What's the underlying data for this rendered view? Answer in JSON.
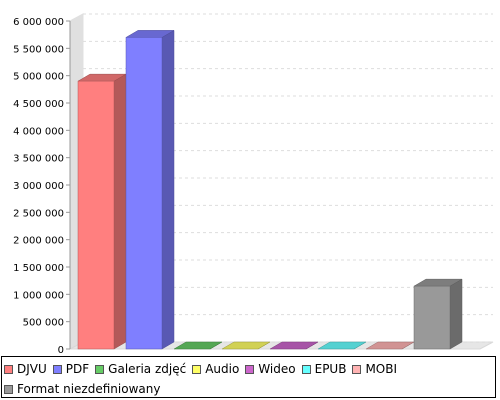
{
  "chart_data": {
    "type": "bar",
    "title": "",
    "xlabel": "",
    "ylabel": "",
    "ylim": [
      0,
      6000000
    ],
    "yticks": [
      "0",
      "500 000",
      "1 000 000",
      "1 500 000",
      "2 000 000",
      "2 500 000",
      "3 000 000",
      "3 500 000",
      "4 000 000",
      "4 500 000",
      "5 000 000",
      "5 500 000",
      "6 000 000"
    ],
    "grid": true,
    "legend_position": "bottom",
    "categories": [
      "DJVU",
      "PDF",
      "Galeria zdjęć",
      "Audio",
      "Wideo",
      "EPUB",
      "MOBI",
      "Format niezdefiniowany"
    ],
    "values": [
      4900000,
      5700000,
      0,
      0,
      0,
      0,
      0,
      1150000
    ],
    "colors": [
      "#ff7f7f",
      "#7f7fff",
      "#66cc66",
      "#ffff66",
      "#cc66cc",
      "#66ffff",
      "#ffb3b3",
      "#999999"
    ]
  }
}
